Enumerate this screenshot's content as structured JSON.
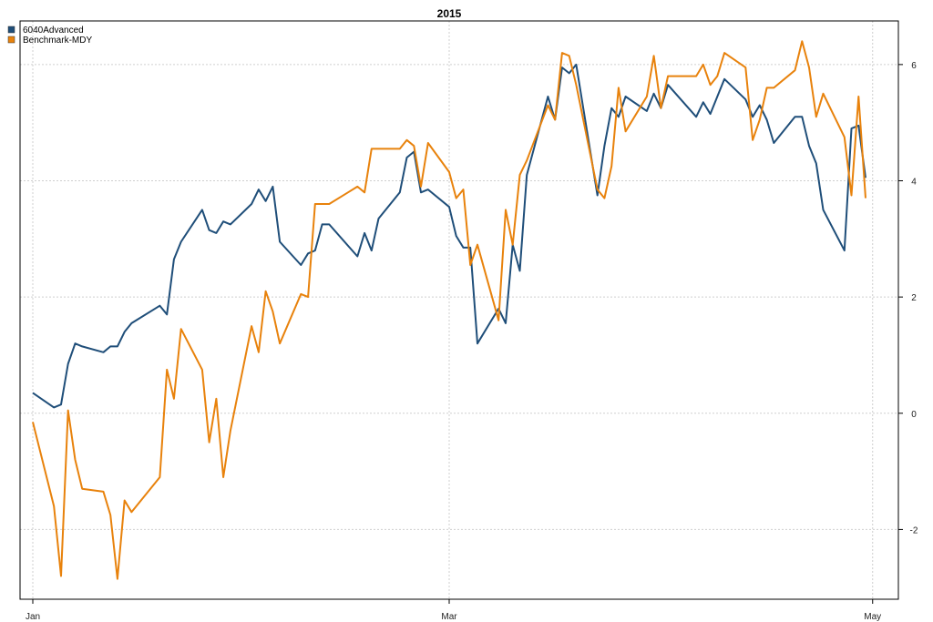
{
  "chart_data": {
    "type": "line",
    "title": "2015",
    "xlabel": "",
    "ylabel": "",
    "ylim": [
      -3.2,
      6.75
    ],
    "y_ticks": [
      -2,
      0,
      2,
      4,
      6
    ],
    "y_axis_side": "right",
    "x_ticks": [
      {
        "label": "Jan",
        "date": "2015-01-02"
      },
      {
        "label": "Mar",
        "date": "2015-03-02"
      },
      {
        "label": "May",
        "date": "2015-05-01"
      }
    ],
    "x_range": [
      "2015-01-02",
      "2015-04-30"
    ],
    "grid": true,
    "legend_position": "top-left",
    "x": [
      "2015-01-02",
      "2015-01-05",
      "2015-01-06",
      "2015-01-07",
      "2015-01-08",
      "2015-01-09",
      "2015-01-12",
      "2015-01-13",
      "2015-01-14",
      "2015-01-15",
      "2015-01-16",
      "2015-01-20",
      "2015-01-21",
      "2015-01-22",
      "2015-01-23",
      "2015-01-26",
      "2015-01-27",
      "2015-01-28",
      "2015-01-29",
      "2015-01-30",
      "2015-02-02",
      "2015-02-03",
      "2015-02-04",
      "2015-02-05",
      "2015-02-06",
      "2015-02-09",
      "2015-02-10",
      "2015-02-11",
      "2015-02-12",
      "2015-02-13",
      "2015-02-17",
      "2015-02-18",
      "2015-02-19",
      "2015-02-20",
      "2015-02-23",
      "2015-02-24",
      "2015-02-25",
      "2015-02-26",
      "2015-02-27",
      "2015-03-02",
      "2015-03-03",
      "2015-03-04",
      "2015-03-05",
      "2015-03-06",
      "2015-03-09",
      "2015-03-10",
      "2015-03-11",
      "2015-03-12",
      "2015-03-13",
      "2015-03-16",
      "2015-03-17",
      "2015-03-18",
      "2015-03-19",
      "2015-03-20",
      "2015-03-23",
      "2015-03-24",
      "2015-03-25",
      "2015-03-26",
      "2015-03-27",
      "2015-03-30",
      "2015-03-31",
      "2015-04-01",
      "2015-04-02",
      "2015-04-06",
      "2015-04-07",
      "2015-04-08",
      "2015-04-09",
      "2015-04-10",
      "2015-04-13",
      "2015-04-14",
      "2015-04-15",
      "2015-04-16",
      "2015-04-17",
      "2015-04-20",
      "2015-04-21",
      "2015-04-22",
      "2015-04-23",
      "2015-04-24",
      "2015-04-27",
      "2015-04-28",
      "2015-04-29",
      "2015-04-30"
    ],
    "series": [
      {
        "name": "6040Advanced",
        "color": "#1F4E79",
        "values": [
          0.35,
          0.1,
          0.15,
          0.85,
          1.2,
          1.15,
          1.05,
          1.15,
          1.15,
          1.4,
          1.55,
          1.85,
          1.7,
          2.65,
          2.95,
          3.5,
          3.15,
          3.1,
          3.3,
          3.25,
          3.6,
          3.85,
          3.65,
          3.9,
          2.95,
          2.55,
          2.75,
          2.8,
          3.25,
          3.25,
          2.7,
          3.1,
          2.8,
          3.35,
          3.8,
          4.4,
          4.5,
          3.8,
          3.85,
          3.55,
          3.05,
          2.85,
          2.85,
          1.2,
          1.8,
          1.55,
          2.9,
          2.45,
          4.1,
          5.45,
          5.05,
          5.95,
          5.85,
          6.0,
          3.75,
          4.6,
          5.25,
          5.1,
          5.45,
          5.2,
          5.5,
          5.25,
          5.65,
          5.1,
          5.35,
          5.15,
          5.45,
          5.75,
          5.4,
          5.1,
          5.3,
          5.05,
          4.65,
          5.1,
          5.1,
          4.6,
          4.3,
          3.5,
          2.8,
          4.9,
          4.95,
          4.05
        ]
      },
      {
        "name": "Benchmark-MDY",
        "color": "#E8820C",
        "values": [
          -0.15,
          -1.6,
          -2.8,
          0.05,
          -0.8,
          -1.3,
          -1.35,
          -1.75,
          -2.85,
          -1.5,
          -1.7,
          -1.1,
          0.75,
          0.25,
          1.45,
          0.75,
          -0.5,
          0.25,
          -1.1,
          -0.3,
          1.5,
          1.05,
          2.1,
          1.75,
          1.2,
          2.05,
          2.0,
          3.6,
          3.6,
          3.6,
          3.9,
          3.8,
          4.55,
          4.55,
          4.55,
          4.7,
          4.6,
          3.9,
          4.65,
          4.15,
          3.7,
          3.85,
          2.55,
          2.9,
          1.6,
          3.5,
          2.9,
          4.1,
          4.35,
          5.3,
          5.05,
          6.2,
          6.15,
          5.65,
          3.85,
          3.7,
          4.25,
          5.6,
          4.85,
          5.45,
          6.15,
          5.25,
          5.8,
          5.8,
          6.0,
          5.65,
          5.8,
          6.2,
          5.95,
          4.7,
          5.05,
          5.6,
          5.6,
          5.9,
          6.4,
          5.95,
          5.1,
          5.5,
          4.75,
          3.75,
          5.45,
          3.7
        ]
      }
    ]
  }
}
